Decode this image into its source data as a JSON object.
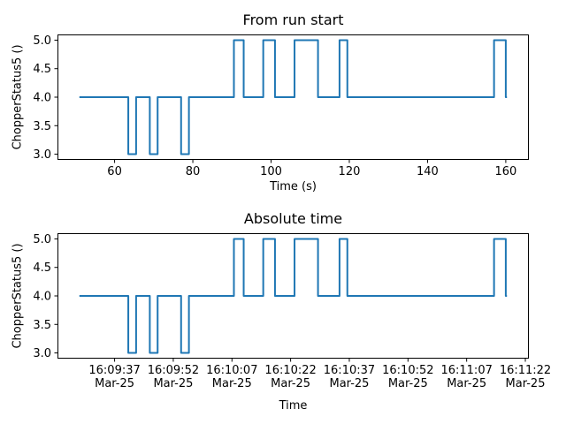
{
  "figure": {
    "background_color": "#ffffff",
    "text_color": "#000000"
  },
  "chart_data": [
    {
      "type": "line",
      "drawstyle": "steps-post",
      "title": "From run start",
      "xlabel": "Time (s)",
      "ylabel": "ChopperStatus5 ()",
      "line_color": "#1f77b4",
      "axis_color": "#000000",
      "grid": false,
      "legend_position": "none",
      "xlim": [
        45.4,
        165.9
      ],
      "ylim": [
        2.9,
        5.1
      ],
      "xticks": [
        {
          "value": 60,
          "label": "60"
        },
        {
          "value": 80,
          "label": "80"
        },
        {
          "value": 100,
          "label": "100"
        },
        {
          "value": 120,
          "label": "120"
        },
        {
          "value": 140,
          "label": "140"
        },
        {
          "value": 160,
          "label": "160"
        }
      ],
      "yticks": [
        {
          "value": 3.0,
          "label": "3.0"
        },
        {
          "value": 3.5,
          "label": "3.5"
        },
        {
          "value": 4.0,
          "label": "4.0"
        },
        {
          "value": 4.5,
          "label": "4.5"
        },
        {
          "value": 5.0,
          "label": "5.0"
        }
      ],
      "steps": [
        [
          51.0,
          4
        ],
        [
          63.5,
          3
        ],
        [
          65.5,
          4
        ],
        [
          69.0,
          3
        ],
        [
          71.0,
          4
        ],
        [
          77.0,
          3
        ],
        [
          79.0,
          4
        ],
        [
          90.5,
          5
        ],
        [
          93.0,
          4
        ],
        [
          98.0,
          5
        ],
        [
          101.0,
          4
        ],
        [
          106.0,
          5
        ],
        [
          112.0,
          4
        ],
        [
          117.5,
          5
        ],
        [
          119.5,
          4
        ],
        [
          157.0,
          5
        ],
        [
          160.0,
          4
        ]
      ],
      "x_end": 160.3
    },
    {
      "type": "line",
      "drawstyle": "steps-post",
      "title": "Absolute time",
      "xlabel": "Time",
      "ylabel": "ChopperStatus5 ()",
      "line_color": "#1f77b4",
      "axis_color": "#000000",
      "grid": false,
      "legend_position": "none",
      "xlim": [
        45.4,
        165.9
      ],
      "ylim": [
        2.9,
        5.1
      ],
      "xticks": [
        {
          "value": 60,
          "label": "16:09:37",
          "label2": "Mar-25"
        },
        {
          "value": 75,
          "label": "16:09:52",
          "label2": "Mar-25"
        },
        {
          "value": 90,
          "label": "16:10:07",
          "label2": "Mar-25"
        },
        {
          "value": 105,
          "label": "16:10:22",
          "label2": "Mar-25"
        },
        {
          "value": 120,
          "label": "16:10:37",
          "label2": "Mar-25"
        },
        {
          "value": 135,
          "label": "16:10:52",
          "label2": "Mar-25"
        },
        {
          "value": 150,
          "label": "16:11:07",
          "label2": "Mar-25"
        },
        {
          "value": 165,
          "label": "16:11:22",
          "label2": "Mar-25"
        }
      ],
      "yticks": [
        {
          "value": 3.0,
          "label": "3.0"
        },
        {
          "value": 3.5,
          "label": "3.5"
        },
        {
          "value": 4.0,
          "label": "4.0"
        },
        {
          "value": 4.5,
          "label": "4.5"
        },
        {
          "value": 5.0,
          "label": "5.0"
        }
      ],
      "steps": [
        [
          51.0,
          4
        ],
        [
          63.5,
          3
        ],
        [
          65.5,
          4
        ],
        [
          69.0,
          3
        ],
        [
          71.0,
          4
        ],
        [
          77.0,
          3
        ],
        [
          79.0,
          4
        ],
        [
          90.5,
          5
        ],
        [
          93.0,
          4
        ],
        [
          98.0,
          5
        ],
        [
          101.0,
          4
        ],
        [
          106.0,
          5
        ],
        [
          112.0,
          4
        ],
        [
          117.5,
          5
        ],
        [
          119.5,
          4
        ],
        [
          157.0,
          5
        ],
        [
          160.0,
          4
        ]
      ],
      "x_end": 160.3
    }
  ]
}
